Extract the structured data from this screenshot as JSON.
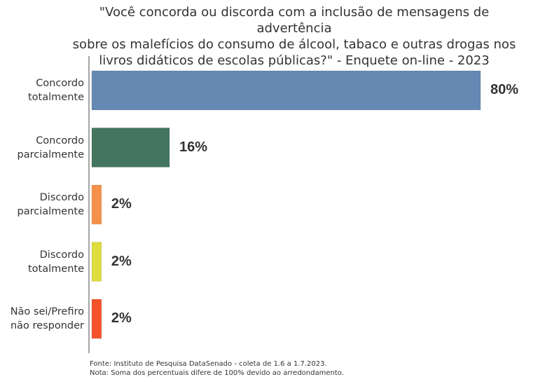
{
  "chart_data": {
    "type": "hbar",
    "title": "\"Você concorda ou discorda com a inclusão de mensagens de advertência\nsobre os malefícios do consumo de álcool, tabaco e outras drogas nos\nlivros didáticos de escolas públicas?\" - Enquete on-line - 2023",
    "categories": [
      "Concordo\ntotalmente",
      "Concordo\nparcialmente",
      "Discordo\nparcialmente",
      "Discordo\ntotalmente",
      "Não sei/Prefiro\nnão responder"
    ],
    "values": [
      80,
      16,
      2,
      2,
      2
    ],
    "value_labels": [
      "80%",
      "16%",
      "2%",
      "2%",
      "2%"
    ],
    "colors": [
      "#6689b3",
      "#447560",
      "#f5904a",
      "#dedd3e",
      "#f5522b"
    ],
    "notes": [
      "Fonte: Instituto de Pesquisa DataSenado - coleta de 1.6 a 1.7.2023.",
      "Nota: Soma dos percentuais difere de 100% devido ao arredondamento."
    ]
  }
}
